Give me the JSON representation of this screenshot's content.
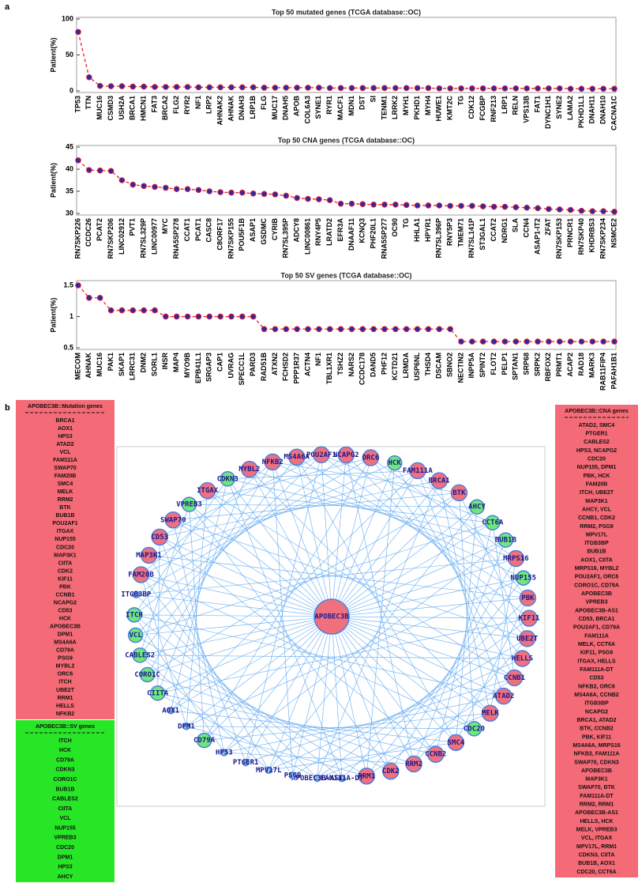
{
  "panel_a": "a",
  "panel_b": "b",
  "chart_data": [
    {
      "type": "line",
      "title": "Top 50 mutated genes (TCGA database::OC)",
      "ylabel": "Patient(%)",
      "categories": [
        "TP53",
        "TTN",
        "MUC16",
        "CSMD3",
        "USH2A",
        "BRCA1",
        "HMCN1",
        "FAT3",
        "BRCA2",
        "FLG2",
        "RYR2",
        "NF1",
        "LRP2",
        "AHNAK2",
        "AHNAK",
        "DNAH3",
        "LRP1B",
        "FLG",
        "MUC17",
        "DNAH5",
        "APOB",
        "COL6A3",
        "SYNE1",
        "RYR1",
        "MACF1",
        "MDN1",
        "DST",
        "SI",
        "TENM1",
        "LRRK2",
        "MYH1",
        "PKHD1",
        "MYH4",
        "HUWE1",
        "KMT2C",
        "TG",
        "CDK12",
        "FCGBP",
        "RNF213",
        "LRP1",
        "RELN",
        "VPS13B",
        "FAT1",
        "DYNC1H1",
        "SYNE2",
        "LAMA2",
        "PKHD1L1",
        "DNAH11",
        "DNAH10",
        "CACNA1C"
      ],
      "values": [
        82,
        19,
        7,
        6.5,
        6.5,
        6,
        6,
        5.5,
        5.5,
        5.5,
        5.5,
        5,
        5,
        5,
        5,
        5,
        5,
        4.5,
        4.5,
        4.5,
        4.5,
        4.5,
        4.5,
        4,
        4,
        4,
        4,
        4,
        4,
        4,
        4,
        4,
        4,
        3.5,
        3.5,
        3.5,
        3.5,
        3.5,
        3.5,
        3.5,
        3.5,
        3.5,
        3.5,
        3.5,
        3.5,
        3,
        3,
        3,
        3,
        3
      ],
      "color": "#e8202a",
      "marker_color": "#2a2aa8",
      "ylim": [
        0,
        100
      ],
      "yticks": [
        0,
        50,
        100
      ]
    },
    {
      "type": "line",
      "title": "Top 50 CNA genes (TCGA database::OC)",
      "ylabel": "Patient(%)",
      "categories": [
        "RN7SKP226",
        "CCDC26",
        "PCAT2",
        "RN7SKP206",
        "LINC02912",
        "PVT1",
        "RN7SL329P",
        "LINC00977",
        "MYC",
        "RNA5SP278",
        "CCAT1",
        "PCAT1",
        "CASC8",
        "C8ORF17",
        "RN7SKP155",
        "POU5F1B",
        "ASAP1",
        "GSDMC",
        "CYRIB",
        "RN7SL395P",
        "ADCY8",
        "LINC00861",
        "RNY4P5",
        "LRATD2",
        "EFR3A",
        "DNAAF11",
        "KCNQ3",
        "PHF20L1",
        "RNA5SP277",
        "OC90",
        "TG",
        "HHLA1",
        "HPYR1",
        "RN7SL396P",
        "RNY5P3",
        "TMEM71",
        "RN7SL141P",
        "ST3GAL1",
        "CCAT2",
        "NDRG1",
        "SLA",
        "CCN4",
        "ASAP1-IT2",
        "ZFAT",
        "RN7SKP153",
        "PRNCR1",
        "RN7SKP40",
        "KHDRBS3",
        "RN7SKP234",
        "NSMCE2"
      ],
      "values": [
        42,
        39.8,
        39.7,
        39.6,
        37.5,
        36.5,
        36.2,
        36,
        35.8,
        35.5,
        35.5,
        35.3,
        35,
        34.8,
        34.7,
        34.7,
        34.5,
        34.4,
        34.3,
        34,
        33.5,
        33.3,
        33.2,
        33,
        32.2,
        32.2,
        32.1,
        32,
        32,
        32,
        31.9,
        31.8,
        31.8,
        31.8,
        31.7,
        31.7,
        31.7,
        31.6,
        31.5,
        31.5,
        31.4,
        31.3,
        31.2,
        31,
        30.9,
        30.8,
        30.6,
        30.5,
        30.5,
        30.4
      ],
      "color": "#e8202a",
      "marker_color": "#2a2aa8",
      "ylim": [
        30,
        45
      ],
      "yticks": [
        30,
        35,
        40,
        45
      ]
    },
    {
      "type": "line",
      "title": "Top 50 SV genes (TCGA database::OC)",
      "ylabel": "Patient(%)",
      "categories": [
        "MECOM",
        "AHNAK",
        "MUC16",
        "PAK1",
        "SKAP1",
        "LRRC31",
        "DNM2",
        "SORL1",
        "INSR",
        "MAP4",
        "MYO9B",
        "EPB41L1",
        "SRGAP3",
        "CAP1",
        "UVRAG",
        "SPECC1L",
        "PARD3",
        "RAD51B",
        "ATXN2",
        "FCHSD2",
        "PPP1R37",
        "ACTN4",
        "NF1",
        "TBL1XR1",
        "TSHZ2",
        "NARS2",
        "CCDC178",
        "DAND5",
        "PHF12",
        "KCTD21",
        "LRMDA",
        "USP6NL",
        "THSD4",
        "DSCAM",
        "SBNO2",
        "NECTIN2",
        "INPP5A",
        "SPINT2",
        "FLOT2",
        "PELP1",
        "SPTAN1",
        "SRP68",
        "SRPK2",
        "RBFOX2",
        "PRMT1",
        "ACAP2",
        "RAD18",
        "MARK3",
        "RAB11FIP4",
        "PAFAH1B1"
      ],
      "values": [
        1.5,
        1.3,
        1.3,
        1.1,
        1.1,
        1.1,
        1.1,
        1.1,
        1,
        1,
        1,
        1,
        1,
        1,
        1,
        1,
        1,
        0.8,
        0.8,
        0.8,
        0.8,
        0.8,
        0.8,
        0.8,
        0.8,
        0.8,
        0.8,
        0.8,
        0.8,
        0.8,
        0.8,
        0.8,
        0.8,
        0.8,
        0.8,
        0.6,
        0.6,
        0.6,
        0.6,
        0.6,
        0.6,
        0.6,
        0.6,
        0.6,
        0.6,
        0.6,
        0.6,
        0.6,
        0.6,
        0.6
      ],
      "color": "#e8202a",
      "marker_color": "#2a2aa8",
      "ylim": [
        0.5,
        1.55
      ],
      "yticks": [
        0.5,
        1,
        1.5
      ]
    }
  ],
  "network": {
    "center": {
      "label": "APOBEC3B",
      "color": "#f0707e"
    },
    "edge_color": "#4d9ff0",
    "nodes": [
      {
        "label": "POU2AF1",
        "color": "#f0707e"
      },
      {
        "label": "NCAPG2",
        "color": "#f0707e"
      },
      {
        "label": "ORC6",
        "color": "#f0707e"
      },
      {
        "label": "HCK",
        "color": "#6ee87a"
      },
      {
        "label": "FAM111A",
        "color": "#f0707e"
      },
      {
        "label": "BRCA1",
        "color": "#f0707e"
      },
      {
        "label": "BTK",
        "color": "#f0707e"
      },
      {
        "label": "AHCY",
        "color": "#6ee87a"
      },
      {
        "label": "CCT6A",
        "color": "#6ee87a"
      },
      {
        "label": "BUB1B",
        "color": "#6ee87a"
      },
      {
        "label": "MRPS16",
        "color": "#f0707e"
      },
      {
        "label": "NUP155",
        "color": "#6ee87a"
      },
      {
        "label": "PBK",
        "color": "#f0707e"
      },
      {
        "label": "KIF11",
        "color": "#f0707e"
      },
      {
        "label": "UBE2T",
        "color": "#f0707e"
      },
      {
        "label": "HELLS",
        "color": "#f0707e"
      },
      {
        "label": "CCNB1",
        "color": "#f0707e"
      },
      {
        "label": "ATAD2",
        "color": "#f0707e"
      },
      {
        "label": "MELK",
        "color": "#f0707e"
      },
      {
        "label": "CDC20",
        "color": "#6ee87a"
      },
      {
        "label": "SMC4",
        "color": "#f0707e"
      },
      {
        "label": "CCNB2",
        "color": "#f0707e"
      },
      {
        "label": "RRM2",
        "color": "#f0707e"
      },
      {
        "label": "CDK2",
        "color": "#f0707e"
      },
      {
        "label": "RRM1",
        "color": "#f0707e"
      },
      {
        "label": "FAM111A-DT",
        "color": "#8fbff0"
      },
      {
        "label": "APOBEC3B-AS1",
        "color": "#8fbff0"
      },
      {
        "label": "PSG9",
        "color": "#8fbff0"
      },
      {
        "label": "MPV17L",
        "color": "#8fbff0"
      },
      {
        "label": "PTGER1",
        "color": "#8fbff0"
      },
      {
        "label": "HPS3",
        "color": "#8fbff0"
      },
      {
        "label": "CD79A",
        "color": "#6ee87a"
      },
      {
        "label": "DPM1",
        "color": "#8fbff0"
      },
      {
        "label": "AOX1",
        "color": "#8fbff0"
      },
      {
        "label": "CIITA",
        "color": "#6ee87a"
      },
      {
        "label": "CORO1C",
        "color": "#6ee87a"
      },
      {
        "label": "CABLES2",
        "color": "#6ee87a"
      },
      {
        "label": "VCL",
        "color": "#6ee87a"
      },
      {
        "label": "ITCH",
        "color": "#6ee87a"
      },
      {
        "label": "ITGB3BP",
        "color": "#8fbff0"
      },
      {
        "label": "FAM20B",
        "color": "#f0707e"
      },
      {
        "label": "MAP3K1",
        "color": "#f0707e"
      },
      {
        "label": "CD53",
        "color": "#f0707e"
      },
      {
        "label": "SWAP70",
        "color": "#f0707e"
      },
      {
        "label": "VPREB3",
        "color": "#6ee87a"
      },
      {
        "label": "ITGAX",
        "color": "#f0707e"
      },
      {
        "label": "CDKN3",
        "color": "#6ee87a"
      },
      {
        "label": "MYBL2",
        "color": "#f0707e"
      },
      {
        "label": "NFKB2",
        "color": "#f0707e"
      },
      {
        "label": "MS4A6A",
        "color": "#f0707e"
      }
    ]
  },
  "lists": {
    "mutation": {
      "title": "APOBEC3B::Mutation genes",
      "color": "#f46a76",
      "items": [
        "BRCA1",
        "AOX1",
        "HPS3",
        "ATAD2",
        "VCL",
        "FAM111A",
        "SWAP70",
        "FAM20B",
        "SMC4",
        "MELK",
        "RRM2",
        "BTK",
        "BUB1B",
        "POU2AF1",
        "ITGAX",
        "NUP155",
        "CDC20",
        "MAP3K1",
        "CIITA",
        "CDK2",
        "KIF11",
        "PBK",
        "CCNB1",
        "NCAPG2",
        "CD53",
        "HCK",
        "APOBEC3B",
        "DPM1",
        "MS4A6A",
        "CD79A",
        "PSG9",
        "MYBL2",
        "ORC6",
        "ITCH",
        "UBE2T",
        "RRM1",
        "HELLS",
        "NFKB2"
      ]
    },
    "sv": {
      "title": "APOBEC3B::SV genes",
      "color": "#26e626",
      "items": [
        "ITCH",
        "HCK",
        "CD79A",
        "CDKN3",
        "CORO1C",
        "BUB1B",
        "CABLES2",
        "CIITA",
        "VCL",
        "NUP155",
        "VPREB3",
        "CDC20",
        "DPM1",
        "HPS3",
        "AHCY"
      ]
    },
    "cna": {
      "title": "APOBEC3B::CNA genes",
      "color": "#f46a76",
      "items": [
        "ATAD2, SMC4",
        "PTGER1",
        "CABLES2",
        "HPS3, NCAPG2",
        "CDC20",
        "NUP155, DPM1",
        "PBK, HCK",
        "FAM20B",
        "ITCH, UBE2T",
        "MAP3K1",
        "AHCY, VCL",
        "CCNB1, CDK2",
        "RRM2, PSG9",
        "MPV17L",
        "ITGB3BP",
        "BUB1B",
        "AOX1, CIITA",
        "MRPS16, MYBL2",
        "POU2AF1, ORC6",
        "CORO1C, CD79A",
        "APOBEC3B",
        "VPREB3",
        "APOBEC3B-AS1",
        "CD53, BRCA1",
        "POU2AF1, CD79A",
        "FAM111A",
        "MELK, CCT6A",
        "KIF11, PSG9",
        "ITGAX, HELLS",
        "FAM111A-DT",
        "CD53",
        "NFKB2, ORC6",
        "MS4A6A, CCNB2",
        "ITGB3BP",
        "NCAPG2",
        "BRCA1, ATAD2",
        "BTK, CCNB2",
        "PBK, KIF11",
        "MS4A6A, MRPS16",
        "NFKB2, FAM111A",
        "SWAP70, CDKN3",
        "APOBEC3B",
        "MAP3K1",
        "SWAP70, BTK",
        "FAM111A-DT",
        "RRM2, RRM1",
        "APOBEC3B-AS1",
        "HELLS, HCK",
        "MELK, VPREB3",
        "VCL, ITGAX",
        "MPV17L, RRM1",
        "CDKN3, CIITA",
        "BUB1B, AOX1",
        "CDC20, CCT6A"
      ]
    }
  }
}
